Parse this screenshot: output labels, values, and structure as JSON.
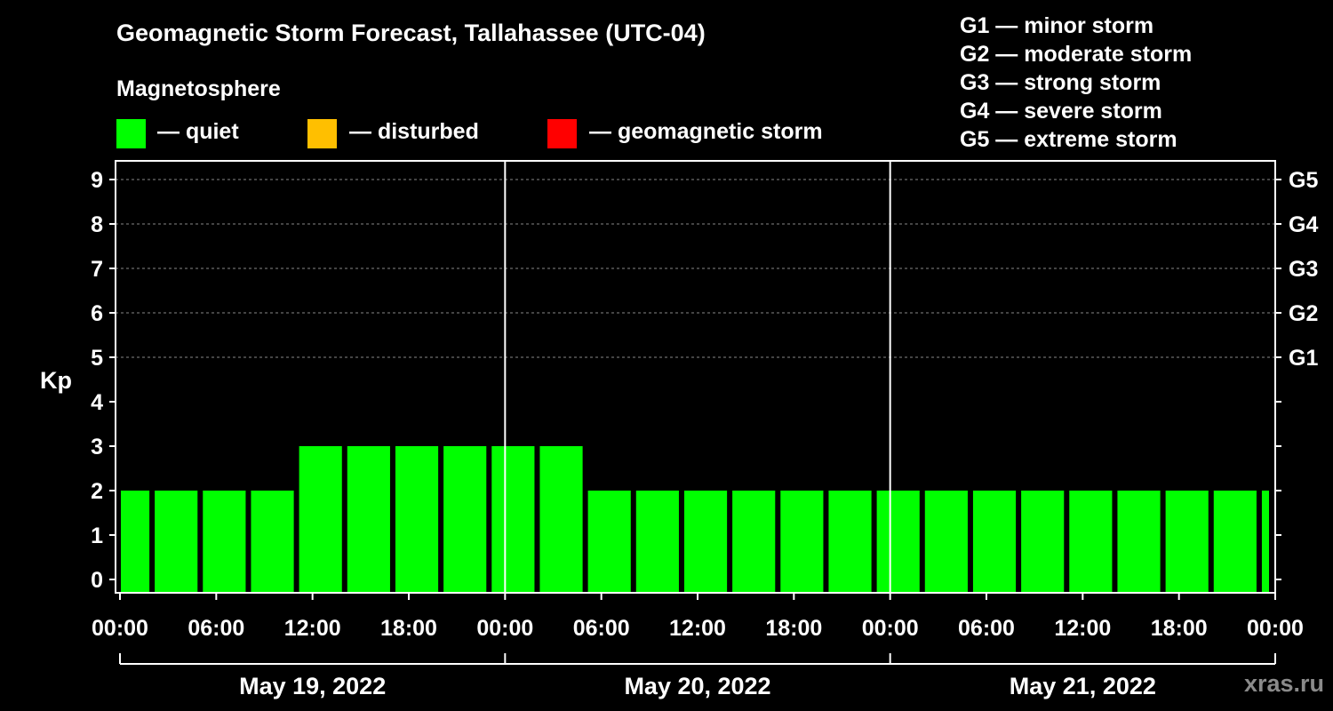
{
  "chart_data": {
    "type": "bar",
    "title": "Geomagnetic Storm Forecast, Tallahassee (UTC-04)",
    "subtitle": "Magnetosphere",
    "ylabel": "Kp",
    "ylim": [
      0,
      9
    ],
    "yticks": [
      "0",
      "1",
      "2",
      "3",
      "4",
      "5",
      "6",
      "7",
      "8",
      "9"
    ],
    "right_ticks": [
      {
        "kp": 5,
        "label": "G1"
      },
      {
        "kp": 6,
        "label": "G2"
      },
      {
        "kp": 7,
        "label": "G3"
      },
      {
        "kp": 8,
        "label": "G4"
      },
      {
        "kp": 9,
        "label": "G5"
      }
    ],
    "xticks": [
      "00:00",
      "06:00",
      "12:00",
      "18:00",
      "00:00",
      "06:00",
      "12:00",
      "18:00",
      "00:00",
      "06:00",
      "12:00",
      "18:00",
      "00:00"
    ],
    "days": [
      "May 19, 2022",
      "May 20, 2022",
      "May 21, 2022"
    ],
    "interval_hours": 3,
    "first_bar_hours": 2,
    "values": [
      2,
      2,
      2,
      2,
      3,
      3,
      3,
      3,
      3,
      3,
      2,
      2,
      2,
      2,
      2,
      2,
      2,
      2,
      2,
      2,
      2,
      2,
      2,
      2,
      2
    ],
    "legend": [
      {
        "color": "#00ff00",
        "label": "— quiet"
      },
      {
        "color": "#ffbf00",
        "label": "— disturbed"
      },
      {
        "color": "#ff0000",
        "label": "— geomagnetic storm"
      }
    ],
    "g_scale": [
      "G1 — minor storm",
      "G2 — moderate storm",
      "G3 — strong storm",
      "G4 — severe storm",
      "G5 — extreme storm"
    ],
    "colors": {
      "quiet": "#00ff00",
      "disturbed": "#ffbf00",
      "storm": "#ff0000"
    }
  },
  "watermark": "xras.ru"
}
